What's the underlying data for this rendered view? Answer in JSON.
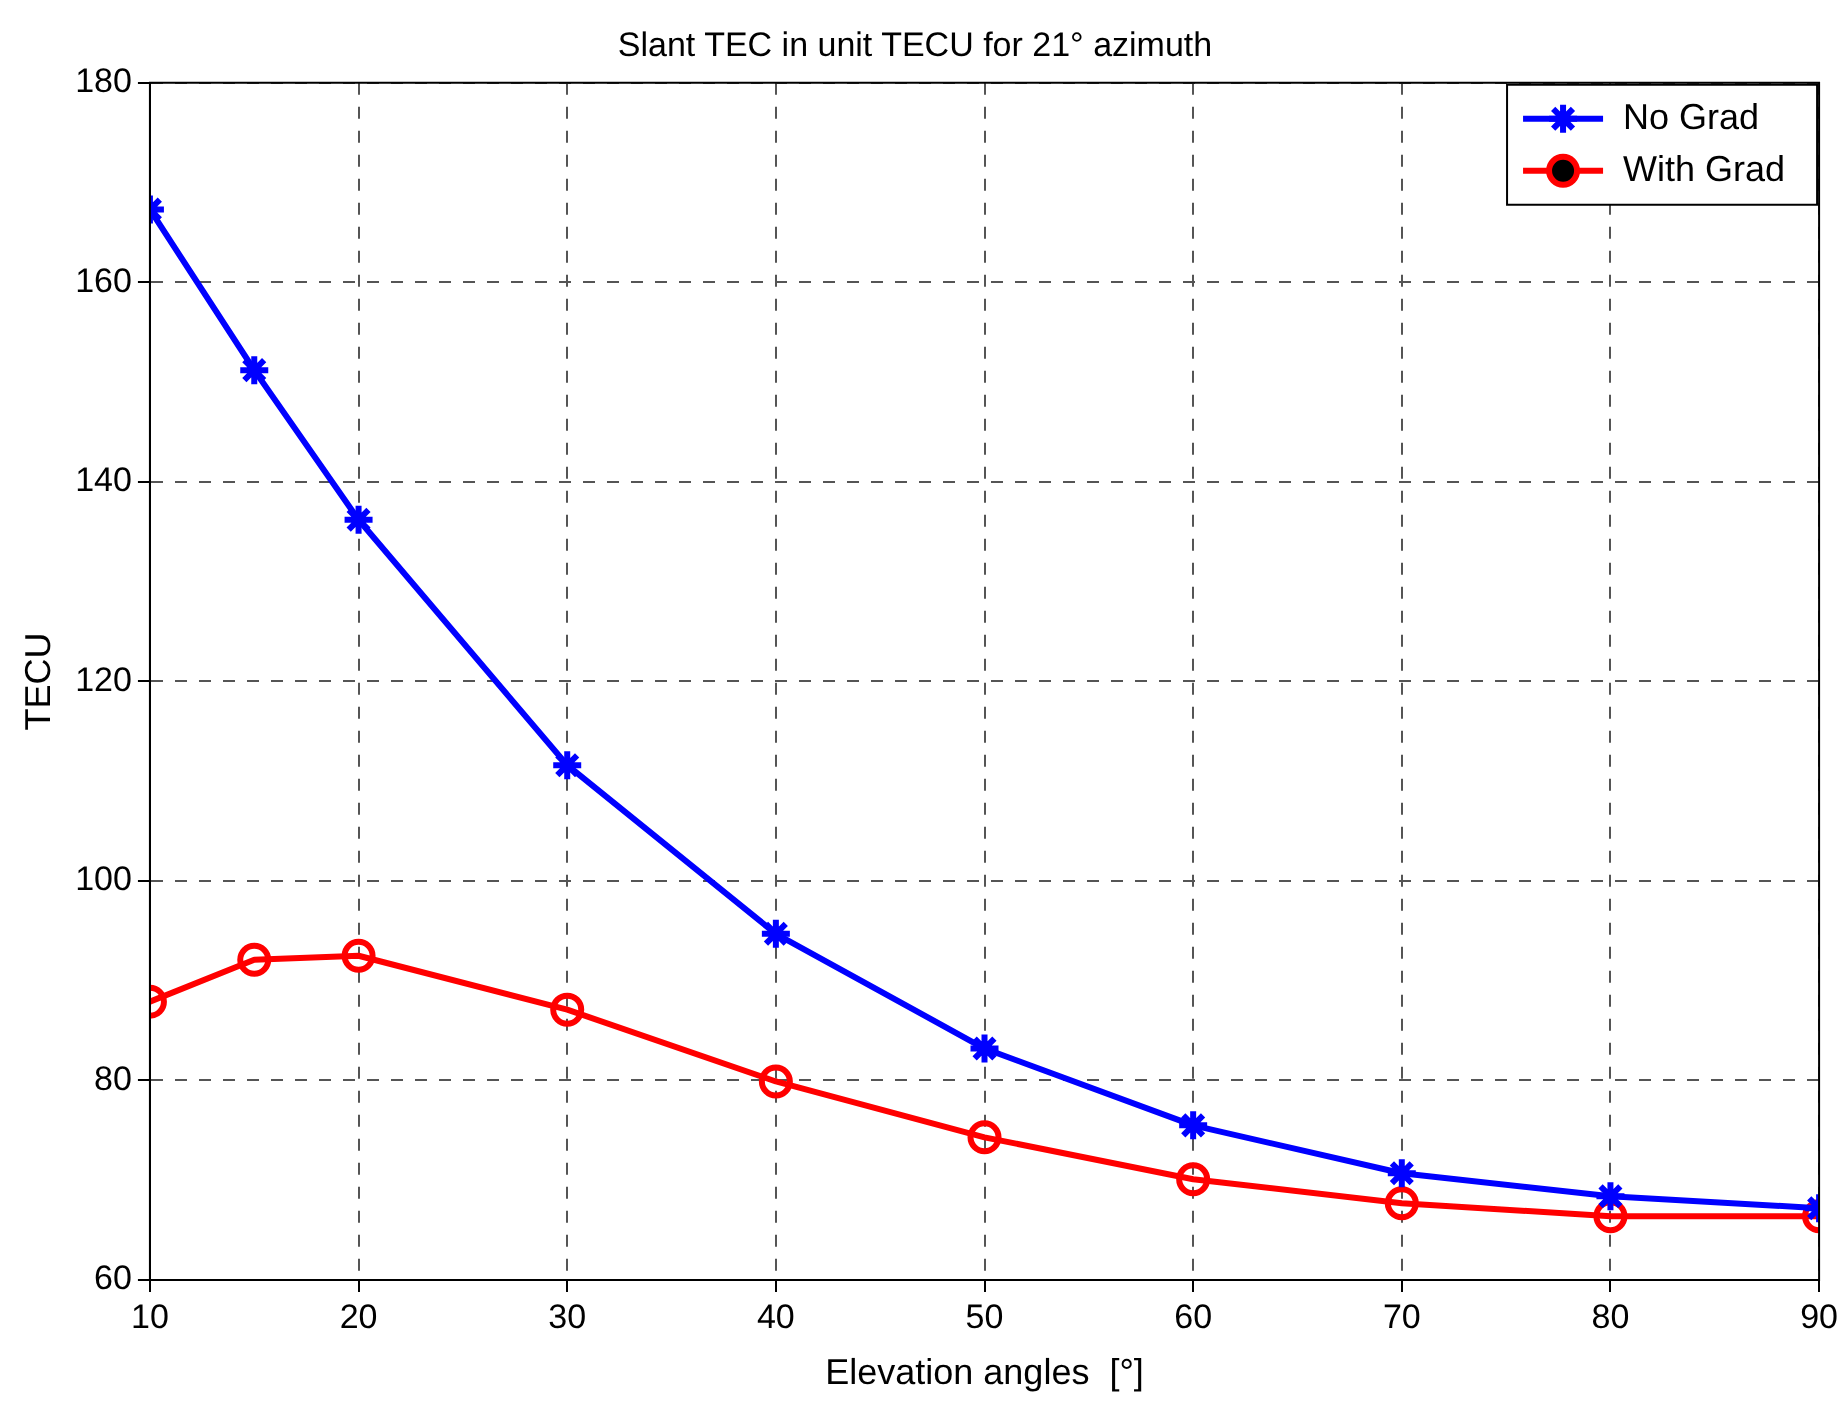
{
  "chart_data": {
    "type": "line",
    "title": "Slant TEC in unit TECU for 21° azimuth",
    "xlabel": "Elevation angles  [°]",
    "ylabel": "TECU",
    "x": [
      10,
      15,
      20,
      30,
      40,
      50,
      60,
      70,
      80,
      90
    ],
    "series": [
      {
        "name": "No Grad",
        "color": "#0000ff",
        "marker": "cross",
        "values": [
          167.3,
          151.2,
          136.2,
          111.6,
          94.7,
          83.2,
          75.5,
          70.7,
          68.4,
          67.2
        ]
      },
      {
        "name": "With Grad",
        "color": "#ff0000",
        "marker": "circle",
        "values": [
          87.9,
          92.1,
          92.5,
          87.1,
          79.9,
          74.3,
          70.1,
          67.7,
          66.4,
          66.4
        ]
      }
    ],
    "xlim": [
      10,
      90
    ],
    "xticks": [
      10,
      20,
      30,
      40,
      50,
      60,
      70,
      80,
      90
    ],
    "ylim": [
      60,
      180
    ],
    "yticks": [
      60,
      80,
      100,
      120,
      140,
      160,
      180
    ],
    "grid": true,
    "line_style": "solid",
    "legend": "top right"
  }
}
